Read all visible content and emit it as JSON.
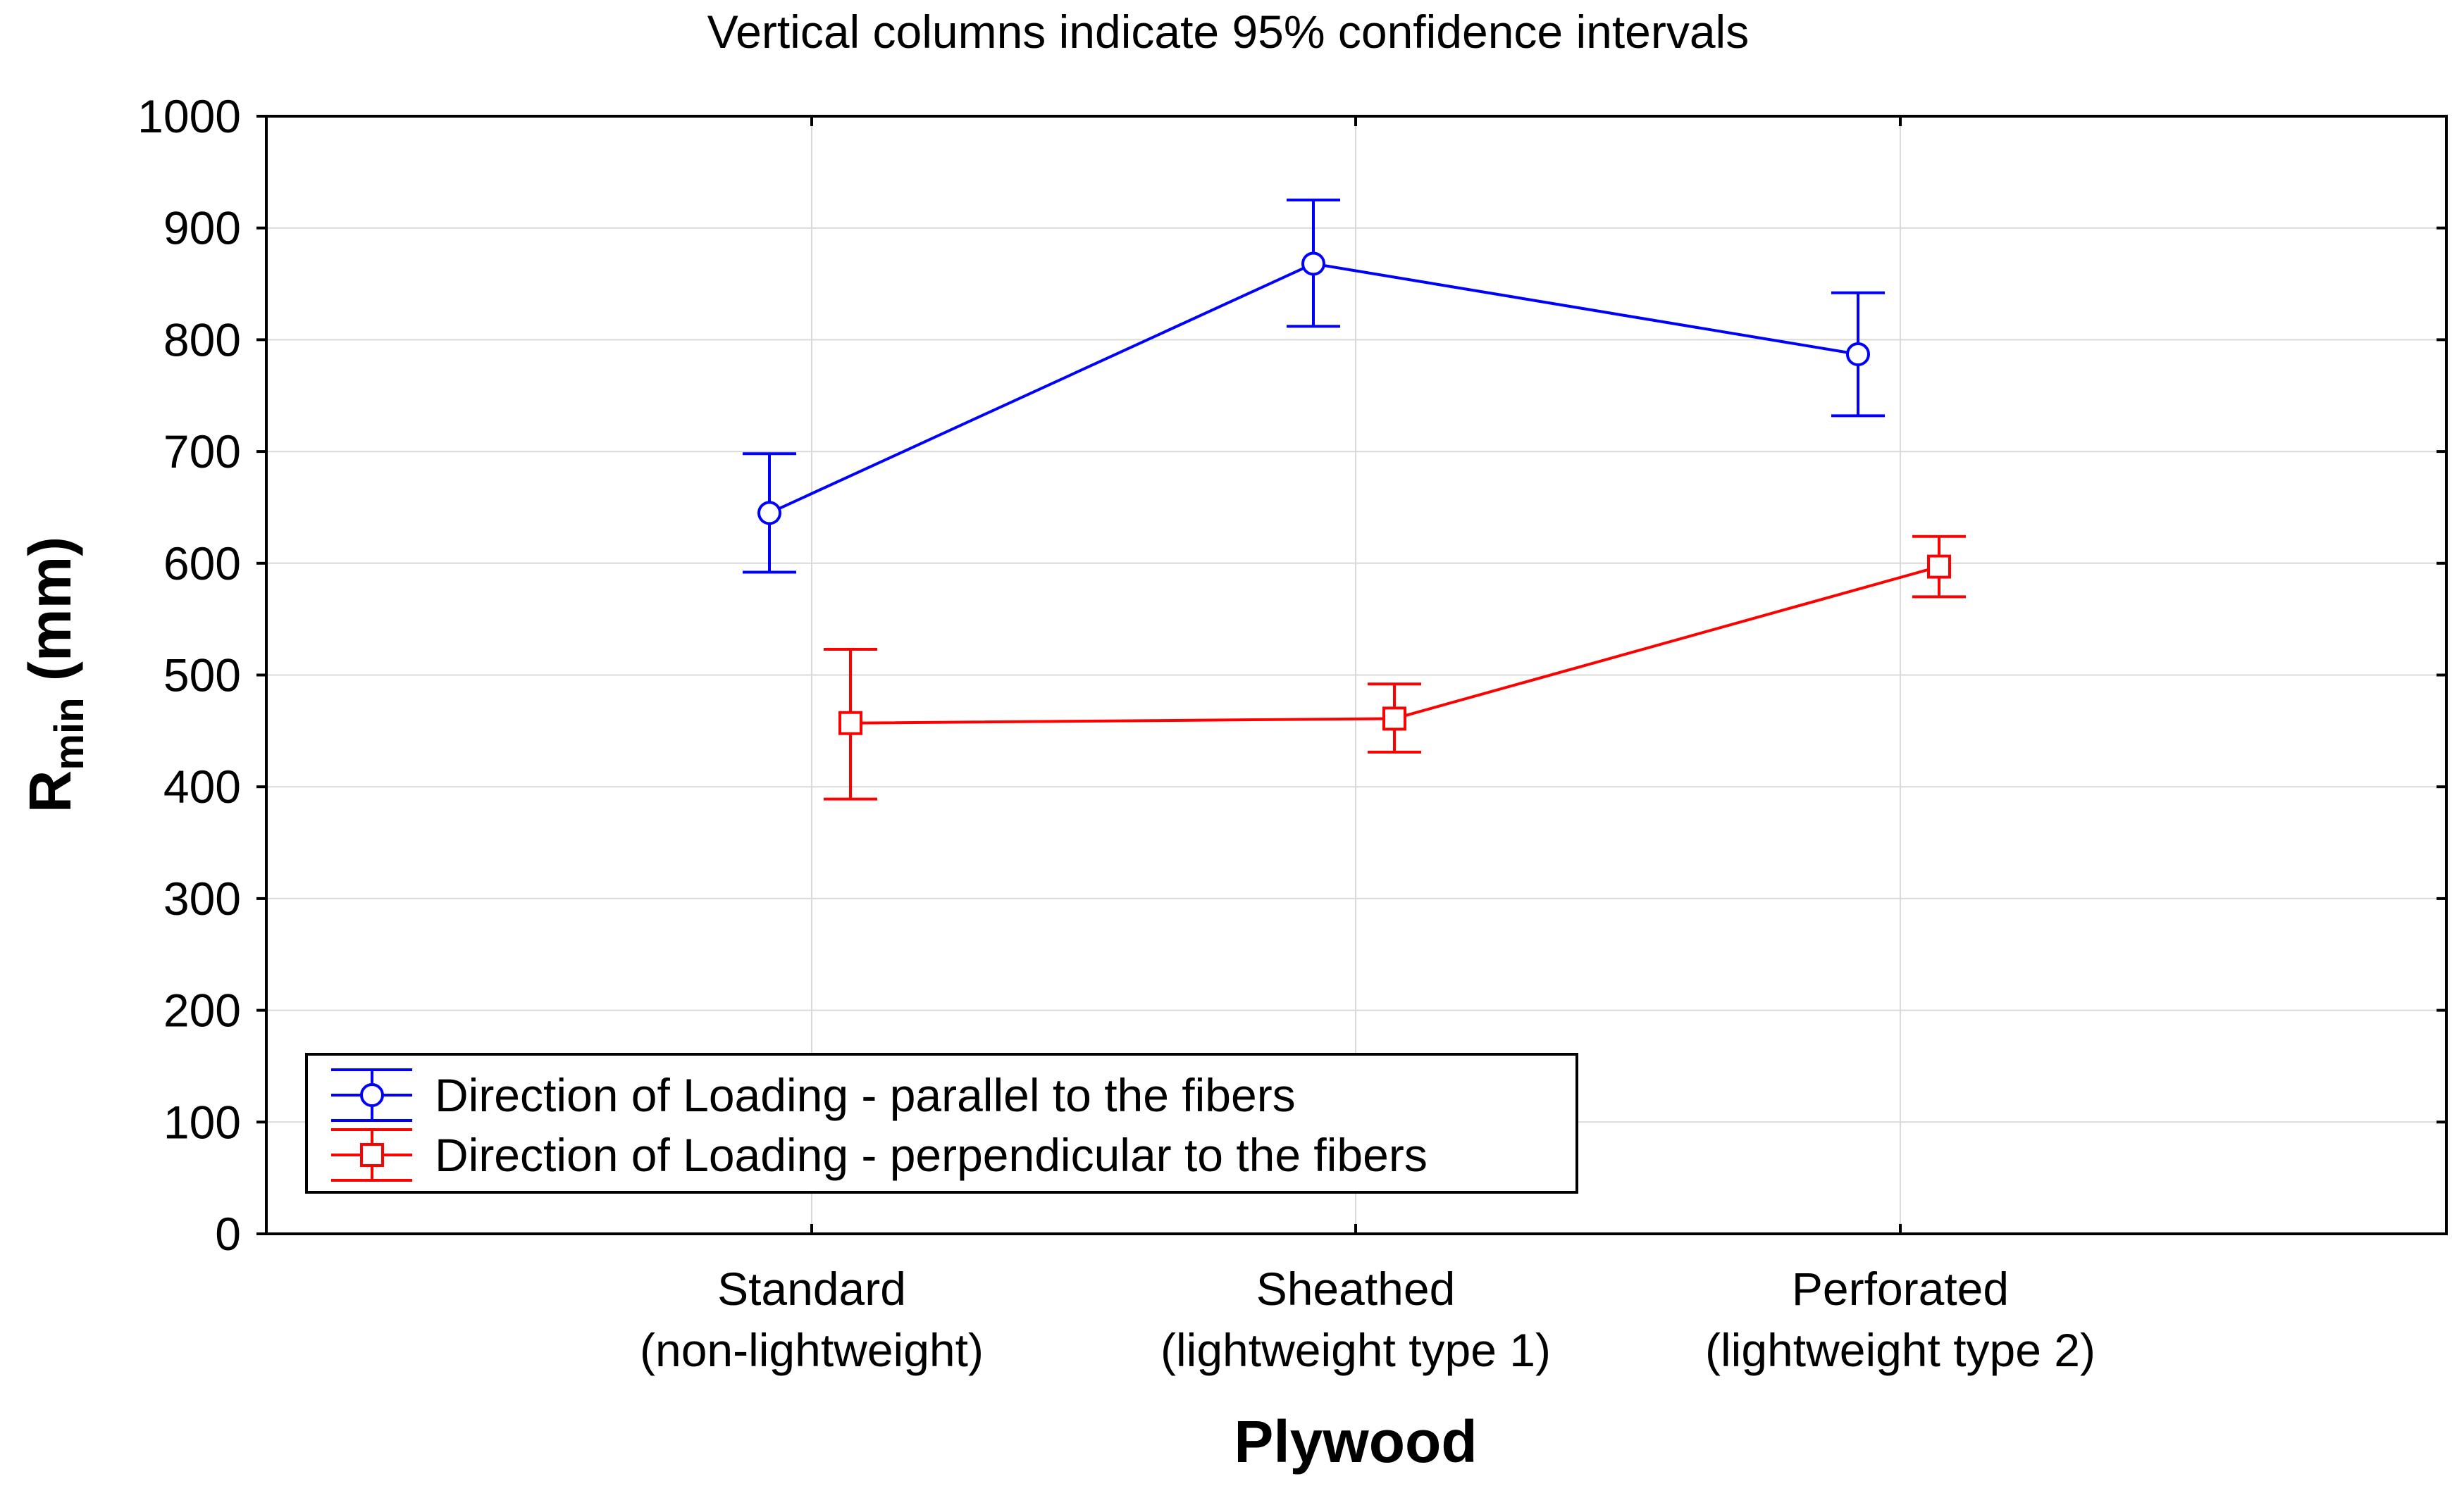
{
  "chart_data": {
    "type": "line",
    "title": "Vertical columns indicate 95% confidence intervals",
    "xlabel": "Plywood",
    "ylabel_main": "R",
    "ylabel_sub": "min",
    "ylabel_unit": " (mm)",
    "ylim": [
      0,
      1000
    ],
    "yticks": [
      "0",
      "100",
      "200",
      "300",
      "400",
      "500",
      "600",
      "700",
      "800",
      "900",
      "1000"
    ],
    "grid": true,
    "legend_position": "bottom-left",
    "categories": [
      {
        "line1": "Standard",
        "line2": "(non-lightweight)"
      },
      {
        "line1": "Sheathed",
        "line2": "(lightweight type 1)"
      },
      {
        "line1": "Perforated",
        "line2": "(lightweight type 2)"
      }
    ],
    "series": [
      {
        "name": "Direction of Loading - parallel to the fibers",
        "color": "#0000ff",
        "marker": "circle",
        "values": [
          645,
          868,
          787
        ],
        "ci_low": [
          592,
          812,
          732
        ],
        "ci_high": [
          698,
          925,
          842
        ]
      },
      {
        "name": "Direction of Loading - perpendicular to the fibers",
        "color": "#ff0000",
        "marker": "square",
        "values": [
          457,
          461,
          597
        ],
        "ci_low": [
          389,
          431,
          570
        ],
        "ci_high": [
          523,
          492,
          624
        ]
      }
    ]
  }
}
